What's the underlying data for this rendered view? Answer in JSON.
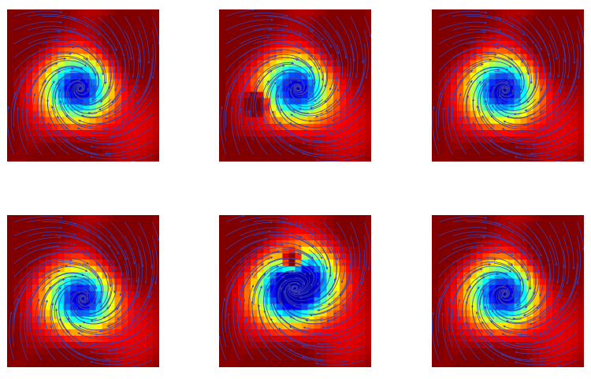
{
  "figure": {
    "panels": [
      {
        "id": "top-left",
        "vortices": [
          [
            0.48,
            0.52,
            1.0
          ]
        ],
        "hotspots": []
      },
      {
        "id": "top-center",
        "vortices": [
          [
            0.52,
            0.52,
            1.0
          ]
        ],
        "hotspots": [
          [
            0.25,
            0.62,
            0.6
          ],
          [
            0.18,
            0.95,
            0.5
          ]
        ]
      },
      {
        "id": "top-right",
        "vortices": [
          [
            0.48,
            0.53,
            1.0
          ]
        ],
        "hotspots": []
      },
      {
        "id": "bottom-left",
        "vortices": [
          [
            0.5,
            0.55,
            1.0
          ]
        ],
        "hotspots": [
          [
            0.15,
            0.08,
            0.4
          ]
        ]
      },
      {
        "id": "bottom-center",
        "vortices": [
          [
            0.47,
            0.5,
            1.0
          ],
          [
            0.62,
            0.4,
            0.6
          ]
        ],
        "hotspots": [
          [
            0.48,
            0.3,
            0.8
          ]
        ]
      },
      {
        "id": "bottom-right",
        "vortices": [
          [
            0.48,
            0.52,
            1.0
          ]
        ],
        "hotspots": [
          [
            0.85,
            0.12,
            0.7
          ]
        ]
      }
    ],
    "colors": {
      "streamline": "#3a3fb0",
      "background": "#ffffff"
    },
    "colormap": "jet"
  }
}
